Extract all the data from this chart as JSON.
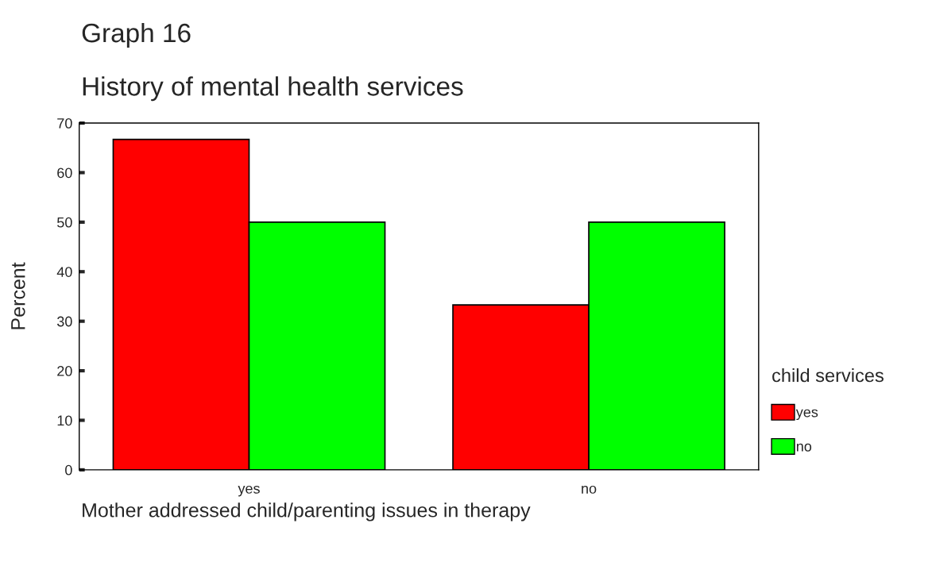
{
  "chart_data": {
    "type": "bar",
    "title": "Graph 16",
    "subtitle": "History of mental health services",
    "xlabel": "Mother addressed child/parenting issues in therapy",
    "ylabel": "Percent",
    "legend_title": "child services",
    "categories": [
      "yes",
      "no"
    ],
    "series": [
      {
        "name": "yes",
        "color": "#ff0000",
        "values": [
          66.7,
          33.3
        ]
      },
      {
        "name": "no",
        "color": "#00ff00",
        "values": [
          50,
          50
        ]
      }
    ],
    "ylim": [
      0,
      70
    ],
    "yticks": [
      0,
      10,
      20,
      30,
      40,
      50,
      60,
      70
    ],
    "grid": false,
    "legend": "right"
  }
}
